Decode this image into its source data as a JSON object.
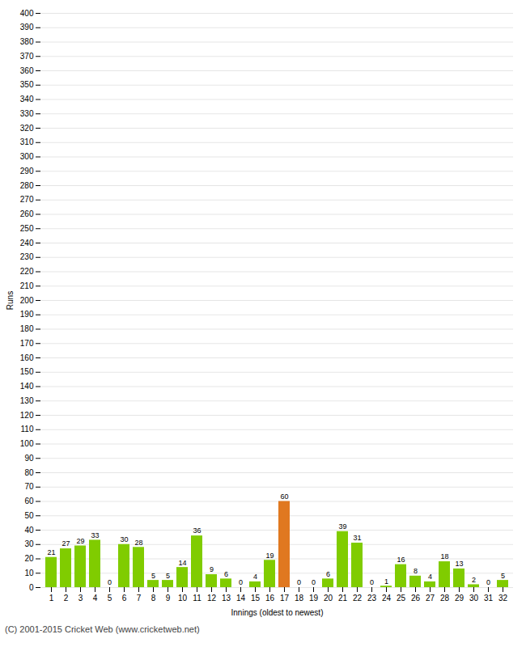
{
  "chart_data": {
    "type": "bar",
    "xlabel": "Innings (oldest to newest)",
    "ylabel": "Runs",
    "caption": "(C) 2001-2015 Cricket Web (www.cricketweb.net)",
    "categories": [
      "1",
      "2",
      "3",
      "4",
      "5",
      "6",
      "7",
      "8",
      "9",
      "10",
      "11",
      "12",
      "13",
      "14",
      "15",
      "16",
      "17",
      "18",
      "19",
      "20",
      "21",
      "22",
      "23",
      "24",
      "25",
      "26",
      "27",
      "28",
      "29",
      "30",
      "31",
      "32"
    ],
    "values": [
      21,
      27,
      29,
      33,
      0,
      30,
      28,
      5,
      5,
      14,
      36,
      9,
      6,
      0,
      4,
      19,
      60,
      0,
      0,
      6,
      39,
      31,
      0,
      1,
      16,
      8,
      4,
      18,
      13,
      2,
      0,
      5
    ],
    "colors": [
      "#80cc00",
      "#80cc00",
      "#80cc00",
      "#80cc00",
      "#80cc00",
      "#80cc00",
      "#80cc00",
      "#80cc00",
      "#80cc00",
      "#80cc00",
      "#80cc00",
      "#80cc00",
      "#80cc00",
      "#80cc00",
      "#80cc00",
      "#80cc00",
      "#e07820",
      "#80cc00",
      "#80cc00",
      "#80cc00",
      "#80cc00",
      "#80cc00",
      "#80cc00",
      "#80cc00",
      "#80cc00",
      "#80cc00",
      "#80cc00",
      "#80cc00",
      "#80cc00",
      "#80cc00",
      "#80cc00",
      "#80cc00"
    ],
    "ylim": [
      0,
      400
    ],
    "yticks": [
      0,
      10,
      20,
      30,
      40,
      50,
      60,
      70,
      80,
      90,
      100,
      110,
      120,
      130,
      140,
      150,
      160,
      170,
      180,
      190,
      200,
      210,
      220,
      230,
      240,
      250,
      260,
      270,
      280,
      290,
      300,
      310,
      320,
      330,
      340,
      350,
      360,
      370,
      380,
      390,
      400
    ],
    "grid": true,
    "data_labels": true
  }
}
